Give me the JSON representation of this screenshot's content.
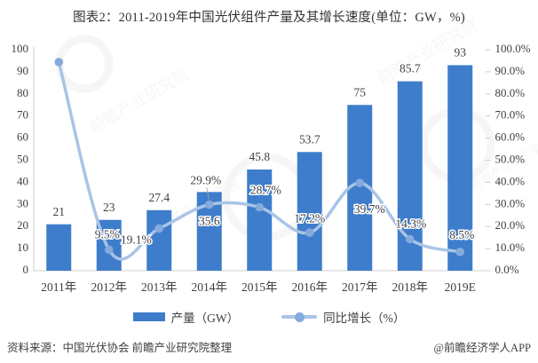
{
  "title": "图表2：2011-2019年中国光伏组件产量及其增长速度(单位：GW，%)",
  "legend": {
    "production_label": "产量（GW）",
    "growth_label": "同比增长（%）"
  },
  "footer": {
    "source": "资料来源：中国光伏协会 前瞻产业研究院整理",
    "credit": "@前瞻经济学人APP"
  },
  "watermark_text": "前瞻产业研究院",
  "colors": {
    "bar": "#3E7DCB",
    "line": "#A9C4E7",
    "marker": "#85AADC",
    "label_text": "#404040",
    "tick_text": "#3F3F3F",
    "axis_line": "#CFCFCF",
    "title_text": "#333333",
    "watermark": "#9B9B9B"
  },
  "chart_data": {
    "type": "combo-bar-line",
    "title": "图表2：2011-2019年中国光伏组件产量及其增长速度(单位：GW，%)",
    "categories": [
      "2011年",
      "2012年",
      "2013年",
      "2014年",
      "2015年",
      "2016年",
      "2017年",
      "2018年",
      "2019E"
    ],
    "series": [
      {
        "name": "产量（GW）",
        "type": "bar",
        "axis": "left",
        "values": [
          21,
          23,
          27.4,
          35.6,
          45.8,
          53.7,
          75,
          85.7,
          93
        ],
        "data_labels": [
          "21",
          "23",
          "27.4",
          "35.6",
          "45.8",
          "53.7",
          "75",
          "85.7",
          "93"
        ]
      },
      {
        "name": "同比增长（%）",
        "type": "line",
        "axis": "right",
        "values": [
          94.4,
          9.5,
          19.1,
          29.9,
          28.7,
          17.2,
          39.7,
          14.3,
          8.5
        ],
        "data_labels": [
          "",
          "9.5%",
          "19.1%",
          "29.9%",
          "28.7%",
          "17.2%",
          "39.7%",
          "14.3%",
          "8.5%"
        ]
      }
    ],
    "left_axis": {
      "min": 0,
      "max": 100,
      "step": 10,
      "tick_labels": [
        "0",
        "10",
        "20",
        "30",
        "40",
        "50",
        "60",
        "70",
        "80",
        "90",
        "100"
      ]
    },
    "right_axis": {
      "min": 0,
      "max": 100,
      "step": 10,
      "tick_labels": [
        "0.0%",
        "10.0%",
        "20.0%",
        "30.0%",
        "40.0%",
        "50.0%",
        "60.0%",
        "70.0%",
        "80.0%",
        "90.0%",
        "100.0%"
      ]
    },
    "grid": false,
    "legend_position": "bottom"
  }
}
